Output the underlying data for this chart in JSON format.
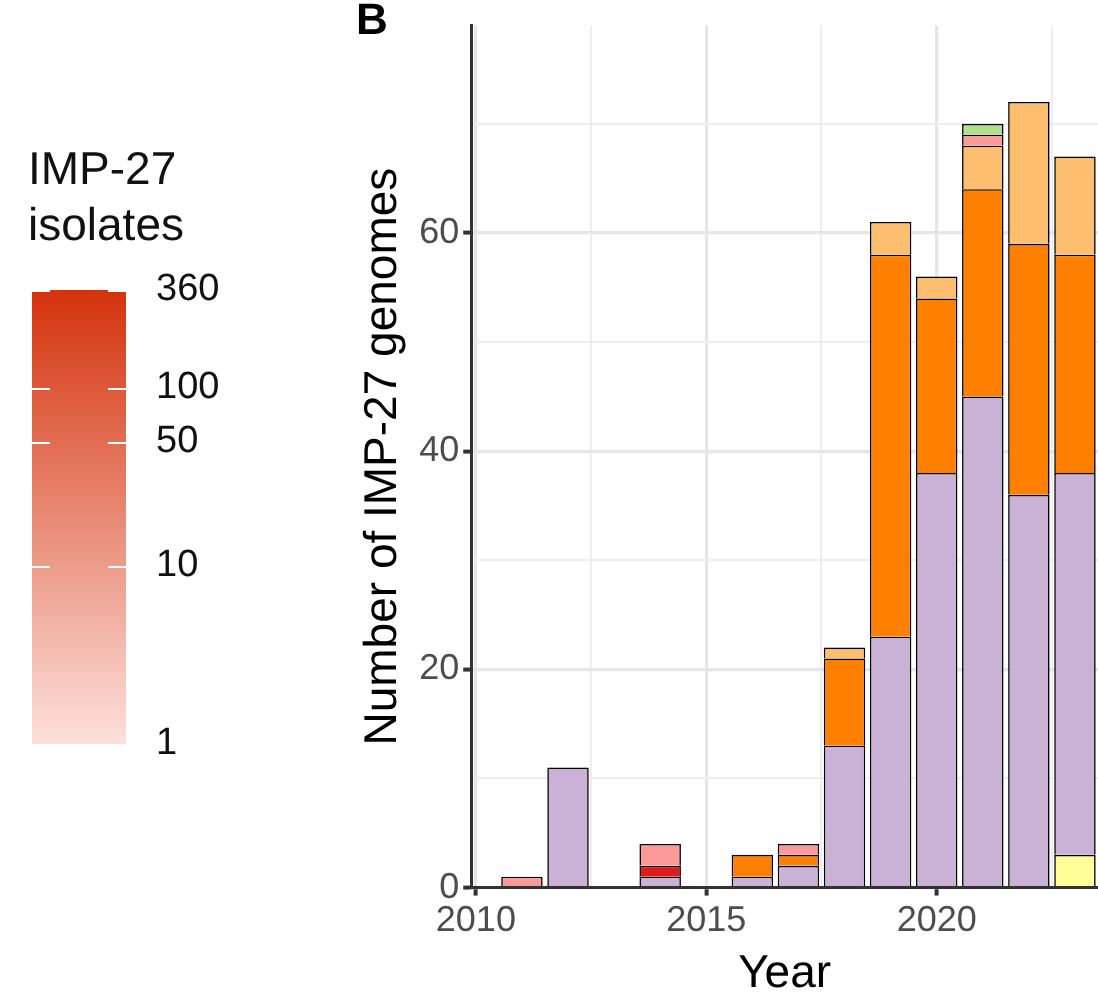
{
  "chart_data": [
    {
      "type": "other",
      "title": "IMP-27 isolates",
      "annotations": [
        "1",
        "10",
        "50",
        "100",
        "360"
      ],
      "colors": [
        "#fde0dc",
        "#d4330c"
      ]
    },
    {
      "type": "bar",
      "stacked": true,
      "xlabel": "Year",
      "ylabel": "Number of IMP-27 genomes",
      "annotations": [
        "B"
      ],
      "xlim": [
        2009.9,
        2023.5
      ],
      "xticks": [
        2010,
        {
          "value": 2012.5,
          "label": null
        },
        2015,
        {
          "value": 2017.5,
          "label": null
        },
        2020,
        {
          "value": 2022.5,
          "label": null
        }
      ],
      "ylim": [
        0,
        79
      ],
      "yticks": [
        0,
        {
          "value": 10,
          "label": null
        },
        20,
        {
          "value": 30,
          "label": null
        },
        40,
        {
          "value": 50,
          "label": null
        },
        60,
        {
          "value": 70,
          "label": null
        }
      ],
      "grid": true,
      "legend": false,
      "x": [
        2011,
        2012,
        2014,
        2016,
        2017,
        2018,
        2019,
        2020,
        2021,
        2022,
        2023
      ],
      "series": [
        {
          "color": "#ffff99",
          "values": [
            null,
            null,
            null,
            null,
            null,
            null,
            null,
            null,
            null,
            null,
            3
          ]
        },
        {
          "color": "#cab2d6",
          "values": [
            null,
            11,
            1,
            1,
            2,
            13,
            23,
            38,
            45,
            36,
            35
          ]
        },
        {
          "color": "#ff7f00",
          "values": [
            null,
            null,
            null,
            2,
            1,
            8,
            35,
            16,
            19,
            23,
            20
          ]
        },
        {
          "color": "#fdbf6f",
          "values": [
            null,
            null,
            null,
            null,
            null,
            1,
            3,
            2,
            4,
            13,
            9
          ]
        },
        {
          "color": "#e31a1c",
          "values": [
            null,
            null,
            1,
            null,
            null,
            null,
            null,
            null,
            null,
            null,
            null
          ]
        },
        {
          "color": "#fb9a99",
          "values": [
            1,
            null,
            2,
            null,
            1,
            null,
            null,
            null,
            1,
            null,
            null
          ]
        },
        {
          "color": "#b2df8a",
          "values": [
            null,
            null,
            null,
            null,
            null,
            null,
            null,
            null,
            1,
            null,
            null
          ]
        }
      ]
    }
  ]
}
